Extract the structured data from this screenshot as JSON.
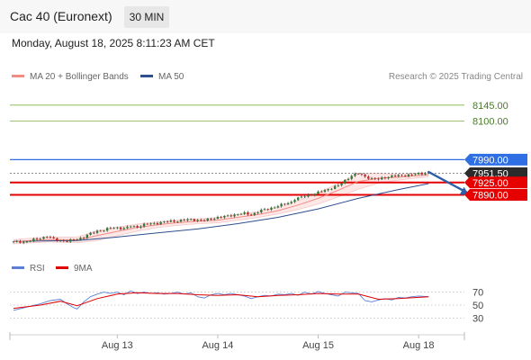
{
  "header": {
    "instrument": "Cac 40 (Euronext)",
    "interval": "30 MIN",
    "timestamp": "Monday, August 18, 2025 8:11:23 AM CET"
  },
  "legend": {
    "ma20_bollinger": "MA 20 + Bollinger Bands",
    "ma50": "MA 50"
  },
  "credit": "Research © 2025 Trading Central",
  "rsi_legend": {
    "rsi": "RSI",
    "ma9": "9MA"
  },
  "colors": {
    "resistance": "#7cb342",
    "pivot": "#2f6fe4",
    "support": "#e60000",
    "last_price": "#2b2b2b",
    "ma20": "#f28b82",
    "ma50": "#2d4f8f",
    "bollinger_fill": "#fde3e3",
    "candle_up": "#2e7d32",
    "candle_down": "#c62828",
    "rsi": "#5b7fd6",
    "rsi_ma": "#e00000",
    "arrow": "#2d5fa8"
  },
  "chart_data": [
    {
      "type": "candlestick",
      "ylim": [
        7748,
        8188
      ],
      "x_ticks": [
        {
          "label": "Aug 13",
          "x": 31
        },
        {
          "label": "Aug 14",
          "x": 61
        },
        {
          "label": "Aug 15",
          "x": 91
        },
        {
          "label": "Aug 18",
          "x": 121
        }
      ],
      "x_range": [
        -3,
        135
      ],
      "levels": [
        {
          "label": "8145.00",
          "value": 8145,
          "role": "resistance"
        },
        {
          "label": "8100.00",
          "value": 8100,
          "role": "resistance"
        },
        {
          "label": "7990.00",
          "value": 7990,
          "role": "pivot"
        },
        {
          "label": "7951.50",
          "value": 7951.5,
          "role": "last_price"
        },
        {
          "label": "7925.00",
          "value": 7925,
          "role": "support"
        },
        {
          "label": "7890.00",
          "value": 7890,
          "role": "support"
        }
      ],
      "close_path": [
        [
          0,
          7756
        ],
        [
          4,
          7757
        ],
        [
          6,
          7762
        ],
        [
          8,
          7767
        ],
        [
          10,
          7772
        ],
        [
          12,
          7764
        ],
        [
          14,
          7760
        ],
        [
          16,
          7758
        ],
        [
          18,
          7762
        ],
        [
          19,
          7764
        ],
        [
          21,
          7770
        ],
        [
          23,
          7780
        ],
        [
          25,
          7787
        ],
        [
          27,
          7790
        ],
        [
          29,
          7795
        ],
        [
          31,
          7797
        ],
        [
          33,
          7794
        ],
        [
          35,
          7801
        ],
        [
          37,
          7799
        ],
        [
          39,
          7805
        ],
        [
          41,
          7808
        ],
        [
          43,
          7810
        ],
        [
          45,
          7813
        ],
        [
          47,
          7815
        ],
        [
          49,
          7816
        ],
        [
          51,
          7818
        ],
        [
          53,
          7820
        ],
        [
          55,
          7818
        ],
        [
          57,
          7817
        ],
        [
          59,
          7822
        ],
        [
          61,
          7826
        ],
        [
          63,
          7828
        ],
        [
          65,
          7832
        ],
        [
          67,
          7835
        ],
        [
          69,
          7837
        ],
        [
          71,
          7834
        ],
        [
          73,
          7842
        ],
        [
          75,
          7848
        ],
        [
          77,
          7853
        ],
        [
          79,
          7858
        ],
        [
          81,
          7864
        ],
        [
          83,
          7870
        ],
        [
          84,
          7878
        ],
        [
          85,
          7880
        ],
        [
          87,
          7887
        ],
        [
          89,
          7891
        ],
        [
          91,
          7896
        ],
        [
          93,
          7903
        ],
        [
          95,
          7910
        ],
        [
          97,
          7916
        ],
        [
          99,
          7931
        ],
        [
          101,
          7945
        ],
        [
          103,
          7950
        ],
        [
          105,
          7942
        ],
        [
          107,
          7936
        ],
        [
          109,
          7934
        ],
        [
          111,
          7940
        ],
        [
          113,
          7943
        ],
        [
          115,
          7944
        ],
        [
          117,
          7946
        ],
        [
          119,
          7947
        ],
        [
          121,
          7950
        ],
        [
          123,
          7952
        ],
        [
          124,
          7951.5
        ]
      ],
      "ma20_path": [
        [
          0,
          7757
        ],
        [
          10,
          7763
        ],
        [
          19,
          7762
        ],
        [
          25,
          7774
        ],
        [
          31,
          7786
        ],
        [
          37,
          7797
        ],
        [
          43,
          7805
        ],
        [
          49,
          7811
        ],
        [
          55,
          7815
        ],
        [
          61,
          7818
        ],
        [
          67,
          7826
        ],
        [
          73,
          7834
        ],
        [
          79,
          7845
        ],
        [
          85,
          7861
        ],
        [
          91,
          7880
        ],
        [
          97,
          7903
        ],
        [
          103,
          7928
        ],
        [
          109,
          7937
        ],
        [
          115,
          7940
        ],
        [
          121,
          7945
        ],
        [
          124,
          7947
        ]
      ],
      "bollinger_width_path": [
        [
          0,
          6
        ],
        [
          19,
          8
        ],
        [
          25,
          14
        ],
        [
          31,
          12
        ],
        [
          43,
          8
        ],
        [
          55,
          7
        ],
        [
          67,
          8
        ],
        [
          79,
          9
        ],
        [
          91,
          16
        ],
        [
          103,
          22
        ],
        [
          109,
          14
        ],
        [
          115,
          8
        ],
        [
          124,
          6
        ]
      ],
      "ma50_path": [
        [
          0,
          7758
        ],
        [
          19,
          7760
        ],
        [
          31,
          7770
        ],
        [
          43,
          7782
        ],
        [
          55,
          7793
        ],
        [
          67,
          7808
        ],
        [
          79,
          7826
        ],
        [
          91,
          7850
        ],
        [
          103,
          7880
        ],
        [
          115,
          7905
        ],
        [
          124,
          7922
        ]
      ],
      "forecast_arrow": {
        "from": [
          124,
          7955
        ],
        "to": [
          136,
          7890
        ]
      }
    },
    {
      "type": "line",
      "title": "RSI",
      "ylim": [
        18,
        82
      ],
      "y_ticks": [
        70,
        50,
        30
      ],
      "rsi_path": [
        [
          0,
          42
        ],
        [
          4,
          47
        ],
        [
          8,
          52
        ],
        [
          11,
          57
        ],
        [
          14,
          59
        ],
        [
          16,
          52
        ],
        [
          18,
          46
        ],
        [
          19,
          44
        ],
        [
          21,
          55
        ],
        [
          23,
          63
        ],
        [
          25,
          67
        ],
        [
          27,
          70
        ],
        [
          29,
          68
        ],
        [
          31,
          70
        ],
        [
          33,
          66
        ],
        [
          35,
          72
        ],
        [
          37,
          68
        ],
        [
          39,
          70
        ],
        [
          41,
          68
        ],
        [
          43,
          69
        ],
        [
          45,
          67
        ],
        [
          47,
          68
        ],
        [
          49,
          70
        ],
        [
          51,
          67
        ],
        [
          53,
          69
        ],
        [
          55,
          63
        ],
        [
          57,
          61
        ],
        [
          59,
          66
        ],
        [
          61,
          68
        ],
        [
          63,
          66
        ],
        [
          65,
          68
        ],
        [
          67,
          66
        ],
        [
          69,
          64
        ],
        [
          71,
          60
        ],
        [
          73,
          63
        ],
        [
          75,
          65
        ],
        [
          77,
          64
        ],
        [
          79,
          67
        ],
        [
          81,
          66
        ],
        [
          83,
          68
        ],
        [
          85,
          65
        ],
        [
          87,
          70
        ],
        [
          89,
          67
        ],
        [
          91,
          71
        ],
        [
          93,
          68
        ],
        [
          95,
          66
        ],
        [
          97,
          64
        ],
        [
          99,
          70
        ],
        [
          101,
          69
        ],
        [
          103,
          68
        ],
        [
          105,
          57
        ],
        [
          107,
          55
        ],
        [
          109,
          58
        ],
        [
          111,
          60
        ],
        [
          113,
          58
        ],
        [
          115,
          62
        ],
        [
          117,
          61
        ],
        [
          119,
          63
        ],
        [
          121,
          64
        ],
        [
          124,
          63
        ]
      ],
      "ma9_path": [
        [
          0,
          45
        ],
        [
          8,
          50
        ],
        [
          14,
          56
        ],
        [
          19,
          49
        ],
        [
          25,
          60
        ],
        [
          31,
          67
        ],
        [
          37,
          69
        ],
        [
          43,
          68
        ],
        [
          49,
          68
        ],
        [
          55,
          66
        ],
        [
          61,
          65
        ],
        [
          67,
          66
        ],
        [
          73,
          63
        ],
        [
          79,
          65
        ],
        [
          85,
          66
        ],
        [
          91,
          68
        ],
        [
          97,
          67
        ],
        [
          103,
          67
        ],
        [
          109,
          59
        ],
        [
          115,
          60
        ],
        [
          121,
          62
        ],
        [
          124,
          63
        ]
      ]
    }
  ]
}
